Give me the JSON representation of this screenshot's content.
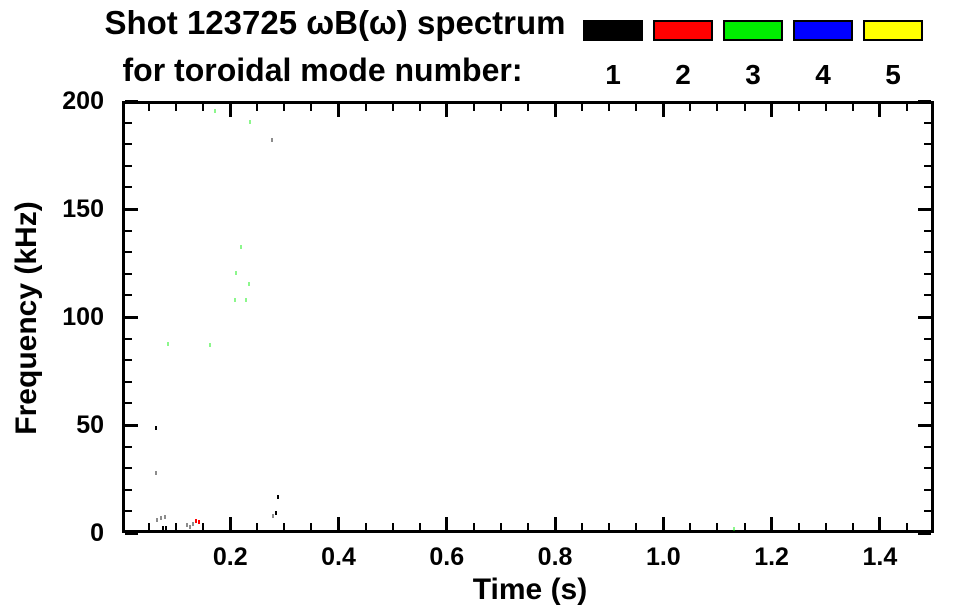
{
  "header": {
    "title_line1": "Shot 123725 ωB(ω) spectrum",
    "title_line2": "for toroidal mode number:"
  },
  "chart_data": {
    "type": "scatter",
    "subtype": "magnetic-spectrogram",
    "title": "Shot 123725 ωB(ω) spectrum for toroidal mode number:",
    "xlabel": "Time (s)",
    "ylabel": "Frequency (kHz)",
    "xlim": [
      0.0,
      1.5
    ],
    "ylim": [
      0,
      200
    ],
    "grid": false,
    "frame": "box-with-inward-ticks",
    "x_major_ticks": [
      0.2,
      0.4,
      0.6,
      0.8,
      1.0,
      1.2,
      1.4
    ],
    "x_tick_labels": [
      "0.2",
      "0.4",
      "0.6",
      "0.8",
      "1.0",
      "1.2",
      "1.4"
    ],
    "x_minor_step": 0.05,
    "y_major_ticks": [
      0,
      50,
      100,
      150,
      200
    ],
    "y_tick_labels": [
      "0",
      "50",
      "100",
      "150",
      "200"
    ],
    "y_minor_step": 10,
    "legend": {
      "position": "top-right-above-plot",
      "entries": [
        {
          "label": "1",
          "color": "#000000"
        },
        {
          "label": "2",
          "color": "#ff0000"
        },
        {
          "label": "3",
          "color": "#00ee00"
        },
        {
          "label": "4",
          "color": "#0000ff"
        },
        {
          "label": "5",
          "color": "#ffff00"
        }
      ]
    },
    "points_note": "t in seconds, f in kHz, mode = toroidal mode number (color via legend), faint = low-intensity pixel",
    "points": [
      {
        "t": 0.065,
        "f": 6.0,
        "mode": 1,
        "faint": true
      },
      {
        "t": 0.072,
        "f": 7.0,
        "mode": 1,
        "faint": true
      },
      {
        "t": 0.079,
        "f": 7.4,
        "mode": 1,
        "faint": true
      },
      {
        "t": 0.076,
        "f": 2.3,
        "mode": 1,
        "faint": false
      },
      {
        "t": 0.081,
        "f": 2.3,
        "mode": 1,
        "faint": false
      },
      {
        "t": 0.12,
        "f": 3.7,
        "mode": 1,
        "faint": true
      },
      {
        "t": 0.126,
        "f": 2.8,
        "mode": 1,
        "faint": true
      },
      {
        "t": 0.131,
        "f": 4.2,
        "mode": 1,
        "faint": true
      },
      {
        "t": 0.137,
        "f": 5.6,
        "mode": 2,
        "faint": false
      },
      {
        "t": 0.142,
        "f": 5.1,
        "mode": 2,
        "faint": false
      },
      {
        "t": 0.063,
        "f": 27.9,
        "mode": 1,
        "faint": true
      },
      {
        "t": 0.063,
        "f": 48.4,
        "mode": 1,
        "faint": false
      },
      {
        "t": 0.085,
        "f": 87.4,
        "mode": 3,
        "faint": true
      },
      {
        "t": 0.163,
        "f": 87.0,
        "mode": 3,
        "faint": true
      },
      {
        "t": 0.172,
        "f": 195.3,
        "mode": 3,
        "faint": true
      },
      {
        "t": 0.236,
        "f": 190.2,
        "mode": 3,
        "faint": true
      },
      {
        "t": 0.277,
        "f": 181.9,
        "mode": 1,
        "faint": true
      },
      {
        "t": 0.22,
        "f": 132.6,
        "mode": 3,
        "faint": true
      },
      {
        "t": 0.211,
        "f": 120.5,
        "mode": 3,
        "faint": true
      },
      {
        "t": 0.235,
        "f": 115.3,
        "mode": 3,
        "faint": true
      },
      {
        "t": 0.209,
        "f": 107.9,
        "mode": 3,
        "faint": true
      },
      {
        "t": 0.229,
        "f": 107.9,
        "mode": 3,
        "faint": true
      },
      {
        "t": 0.288,
        "f": 16.7,
        "mode": 1,
        "faint": false
      },
      {
        "t": 0.284,
        "f": 9.3,
        "mode": 1,
        "faint": false
      },
      {
        "t": 0.279,
        "f": 7.9,
        "mode": 1,
        "faint": true
      },
      {
        "t": 1.131,
        "f": 1.9,
        "mode": 3,
        "faint": true
      }
    ]
  },
  "colors": {
    "background": "#ffffff",
    "axis": "#000000",
    "text": "#000000"
  }
}
